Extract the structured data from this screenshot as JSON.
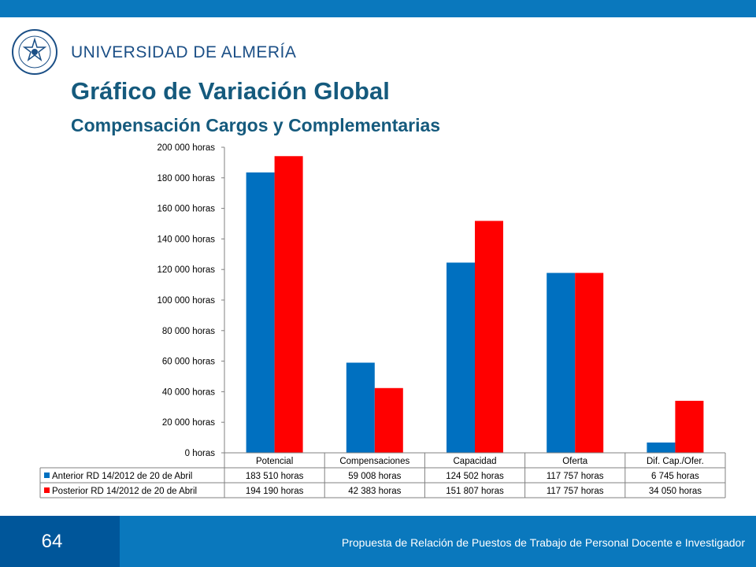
{
  "header": {
    "university_name": "UNIVERSIDAD DE ALMERÍA",
    "logo_icon": "university-seal-icon",
    "title": "Gráfico de Variación Global",
    "subtitle": "Compensación Cargos y Complementarias"
  },
  "colors": {
    "top_bar": "#0a78bd",
    "title": "#155a7d",
    "series_anterior": "#0070c0",
    "series_posterior": "#ff0000"
  },
  "chart_data": {
    "type": "bar",
    "categories": [
      "Potencial",
      "Compensaciones",
      "Capacidad",
      "Oferta",
      "Dif. Cap./Ofer."
    ],
    "series": [
      {
        "name": "Anterior RD 14/2012 de 20 de Abril",
        "values": [
          183510,
          59008,
          124502,
          117757,
          6745
        ],
        "labels": [
          "183 510 horas",
          "59 008 horas",
          "124 502 horas",
          "117 757 horas",
          "6 745 horas"
        ],
        "color": "#0070c0"
      },
      {
        "name": "Posterior RD 14/2012 de 20 de Abril",
        "values": [
          194190,
          42383,
          151807,
          117757,
          34050
        ],
        "labels": [
          "194 190 horas",
          "42 383 horas",
          "151 807 horas",
          "117 757 horas",
          "34 050 horas"
        ],
        "color": "#ff0000"
      }
    ],
    "y_ticks": [
      "0 horas",
      "20 000 horas",
      "40 000 horas",
      "60 000 horas",
      "80 000 horas",
      "100 000 horas",
      "120 000 horas",
      "140 000 horas",
      "160 000 horas",
      "180 000 horas",
      "200 000 horas"
    ],
    "ylim": [
      0,
      200000
    ],
    "grid": false,
    "legend": "data table below chart"
  },
  "footer": {
    "page_number": "64",
    "text": "Propuesta de Relación de Puestos de Trabajo de Personal Docente e Investigador"
  }
}
